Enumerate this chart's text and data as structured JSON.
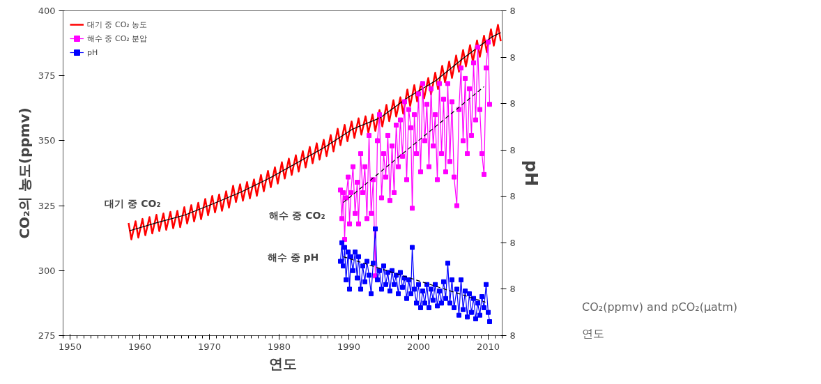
{
  "chart_data": {
    "type": "line",
    "xlabel": "연도",
    "ylabel": "CO₂의 농도(ppmv)",
    "y2label": "pH",
    "xlim": [
      1949,
      2012
    ],
    "xticks": [
      1950,
      1960,
      1970,
      1980,
      1990,
      2000,
      2010
    ],
    "ylim": [
      275,
      400
    ],
    "yticks": [
      275,
      300,
      325,
      350,
      375,
      400
    ],
    "y2lim": [
      8.05,
      8.4
    ],
    "y2ticks": [
      {
        "value": 8.05,
        "label": "8"
      },
      {
        "value": 8.1,
        "label": "8"
      },
      {
        "value": 8.15,
        "label": "8"
      },
      {
        "value": 8.2,
        "label": "8"
      },
      {
        "value": 8.25,
        "label": "8"
      },
      {
        "value": 8.3,
        "label": "8"
      },
      {
        "value": 8.35,
        "label": "8"
      },
      {
        "value": 8.4,
        "label": "8"
      }
    ],
    "grid": false,
    "legend": "top left",
    "series": [
      {
        "name": "대기 중 CO₂ 농도",
        "color": "#ff0000",
        "marker": "none",
        "line_style": "solid",
        "x": [
          1958.4,
          1958.8,
          1959.4,
          1959.8,
          1960.4,
          1960.8,
          1961.4,
          1961.8,
          1962.4,
          1962.8,
          1963.4,
          1963.8,
          1964.4,
          1964.8,
          1965.4,
          1965.8,
          1966.4,
          1966.8,
          1967.4,
          1967.8,
          1968.4,
          1968.8,
          1969.4,
          1969.8,
          1970.4,
          1970.8,
          1971.4,
          1971.8,
          1972.4,
          1972.8,
          1973.4,
          1973.8,
          1974.4,
          1974.8,
          1975.4,
          1975.8,
          1976.4,
          1976.8,
          1977.4,
          1977.8,
          1978.4,
          1978.8,
          1979.4,
          1979.8,
          1980.4,
          1980.8,
          1981.4,
          1981.8,
          1982.4,
          1982.8,
          1983.4,
          1983.8,
          1984.4,
          1984.8,
          1985.4,
          1985.8,
          1986.4,
          1986.8,
          1987.4,
          1987.8,
          1988.4,
          1988.8,
          1989.4,
          1989.8,
          1990.4,
          1990.8,
          1991.4,
          1991.8,
          1992.4,
          1992.8,
          1993.4,
          1993.8,
          1994.4,
          1994.8,
          1995.4,
          1995.8,
          1996.4,
          1996.8,
          1997.4,
          1997.8,
          1998.4,
          1998.8,
          1999.4,
          1999.8,
          2000.4,
          2000.8,
          2001.4,
          2001.8,
          2002.4,
          2002.8,
          2003.4,
          2003.8,
          2004.4,
          2004.8,
          2005.4,
          2005.8,
          2006.4,
          2006.8,
          2007.4,
          2007.8,
          2008.4,
          2008.8,
          2009.4,
          2009.8,
          2010.4,
          2010.8,
          2011.4,
          2011.8
        ],
        "values": [
          318.3,
          312.0,
          319.0,
          312.7,
          319.9,
          313.6,
          320.6,
          314.3,
          321.5,
          315.2,
          322.0,
          315.7,
          322.6,
          316.3,
          323.0,
          316.7,
          324.4,
          318.1,
          325.2,
          318.9,
          326.1,
          319.8,
          327.6,
          321.3,
          328.7,
          322.4,
          329.3,
          323.0,
          330.5,
          324.2,
          332.7,
          326.4,
          333.2,
          326.9,
          334.1,
          327.8,
          335.1,
          328.8,
          336.8,
          330.5,
          338.4,
          332.1,
          339.8,
          333.5,
          341.7,
          335.4,
          343.1,
          336.8,
          344.4,
          338.1,
          346.0,
          339.7,
          347.6,
          341.3,
          349.0,
          342.7,
          350.4,
          344.1,
          352.2,
          345.9,
          354.6,
          348.3,
          356.1,
          349.8,
          357.4,
          351.1,
          358.6,
          352.3,
          359.4,
          353.1,
          360.1,
          353.8,
          361.8,
          355.5,
          363.8,
          357.5,
          365.6,
          359.3,
          366.7,
          360.4,
          369.7,
          363.4,
          371.4,
          365.1,
          372.6,
          366.3,
          374.1,
          367.8,
          376.2,
          369.9,
          378.8,
          372.5,
          380.5,
          374.2,
          382.8,
          376.5,
          384.9,
          378.6,
          386.8,
          380.5,
          388.6,
          382.3,
          390.4,
          384.1,
          392.9,
          386.6,
          394.6,
          388.3
        ]
      },
      {
        "color": "#000000",
        "marker": "none",
        "line_style": "solid",
        "x": [
          1958.5,
          1962.5,
          1966.5,
          1970.5,
          1974.5,
          1978.5,
          1982.5,
          1986.5,
          1990.5,
          1994.5,
          1998.5,
          2002.5,
          2006.5,
          2010.5,
          2011.8
        ],
        "values": [
          315.3,
          318.5,
          321.4,
          325.7,
          330.2,
          335.4,
          341.4,
          347.4,
          354.4,
          358.8,
          366.7,
          373.2,
          381.9,
          389.9,
          391.6
        ]
      },
      {
        "name": "해수 중 CO₂ 분압",
        "color": "#ff00ff",
        "marker": "square",
        "line_style": "solid",
        "x": [
          1988.8,
          1989.0,
          1989.2,
          1989.4,
          1989.6,
          1989.9,
          1990.1,
          1990.3,
          1990.6,
          1990.9,
          1991.2,
          1991.4,
          1991.7,
          1992.0,
          1992.3,
          1992.6,
          1992.9,
          1993.2,
          1993.5,
          1993.8,
          1994.1,
          1994.4,
          1994.7,
          1995.0,
          1995.3,
          1995.6,
          1995.9,
          1996.2,
          1996.5,
          1996.8,
          1997.1,
          1997.4,
          1997.7,
          1998.0,
          1998.3,
          1998.6,
          1998.9,
          1999.1,
          1999.4,
          1999.7,
          2000.0,
          2000.3,
          2000.6,
          2000.9,
          2001.2,
          2001.5,
          2001.8,
          2002.1,
          2002.4,
          2002.7,
          2003.0,
          2003.3,
          2003.6,
          2003.9,
          2004.2,
          2004.5,
          2004.8,
          2005.1,
          2005.5,
          2005.8,
          2006.1,
          2006.4,
          2006.7,
          2007.0,
          2007.3,
          2007.6,
          2007.9,
          2008.2,
          2008.5,
          2008.8,
          2009.1,
          2009.4,
          2009.7,
          2010.0,
          2010.2
        ],
        "values": [
          331,
          320,
          330,
          312,
          328,
          336,
          318,
          330,
          340,
          322,
          334,
          318,
          345,
          330,
          340,
          320,
          352,
          322,
          335,
          298,
          350,
          360,
          328,
          345,
          336,
          352,
          327,
          348,
          330,
          356,
          340,
          358,
          344,
          365,
          335,
          362,
          355,
          324,
          360,
          345,
          368,
          338,
          372,
          350,
          364,
          340,
          370,
          348,
          360,
          335,
          372,
          345,
          366,
          338,
          372,
          342,
          365,
          336,
          325,
          362,
          378,
          350,
          374,
          345,
          370,
          352,
          380,
          358,
          386,
          362,
          345,
          337,
          378,
          388,
          364
        ]
      },
      {
        "color": "#000000",
        "marker": "none",
        "line_style": "dashed",
        "x": [
          1989.2,
          2009.4
        ],
        "values": [
          326.2,
          370.8
        ]
      },
      {
        "name": "pH",
        "color": "#0000ff",
        "marker": "square",
        "line_style": "solid",
        "axis": "y2",
        "x": [
          1988.8,
          1989.0,
          1989.2,
          1989.4,
          1989.6,
          1989.9,
          1990.1,
          1990.3,
          1990.6,
          1990.9,
          1991.2,
          1991.4,
          1991.7,
          1992.0,
          1992.3,
          1992.6,
          1992.9,
          1993.2,
          1993.5,
          1993.8,
          1994.1,
          1994.4,
          1994.7,
          1995.0,
          1995.3,
          1995.6,
          1995.9,
          1996.2,
          1996.5,
          1996.8,
          1997.1,
          1997.4,
          1997.7,
          1998.0,
          1998.3,
          1998.6,
          1998.9,
          1999.1,
          1999.4,
          1999.7,
          2000.0,
          2000.3,
          2000.6,
          2000.9,
          2001.2,
          2001.5,
          2001.8,
          2002.1,
          2002.4,
          2002.7,
          2003.0,
          2003.3,
          2003.6,
          2003.9,
          2004.2,
          2004.5,
          2004.8,
          2005.1,
          2005.5,
          2005.8,
          2006.1,
          2006.4,
          2006.7,
          2007.0,
          2007.3,
          2007.6,
          2007.9,
          2008.2,
          2008.5,
          2008.8,
          2009.1,
          2009.4,
          2009.7,
          2010.0,
          2010.2
        ],
        "values": [
          8.13,
          8.15,
          8.125,
          8.145,
          8.11,
          8.14,
          8.1,
          8.135,
          8.12,
          8.14,
          8.112,
          8.135,
          8.1,
          8.125,
          8.108,
          8.13,
          8.115,
          8.095,
          8.128,
          8.165,
          8.11,
          8.12,
          8.1,
          8.125,
          8.105,
          8.118,
          8.098,
          8.12,
          8.105,
          8.115,
          8.095,
          8.118,
          8.102,
          8.112,
          8.09,
          8.11,
          8.095,
          8.145,
          8.1,
          8.085,
          8.105,
          8.08,
          8.098,
          8.085,
          8.105,
          8.08,
          8.1,
          8.088,
          8.105,
          8.082,
          8.098,
          8.085,
          8.108,
          8.09,
          8.128,
          8.085,
          8.11,
          8.08,
          8.1,
          8.072,
          8.11,
          8.078,
          8.098,
          8.07,
          8.095,
          8.075,
          8.09,
          8.068,
          8.085,
          8.072,
          8.092,
          8.08,
          8.105,
          8.075,
          8.065
        ]
      },
      {
        "color": "#000000",
        "marker": "none",
        "line_style": "dashed",
        "axis": "y2",
        "x": [
          1989.2,
          2009.6
        ],
        "values": [
          8.135,
          8.086
        ]
      }
    ],
    "annotations": [
      "대기 중 CO₂",
      "해수 중 CO₂",
      "해수 중 pH",
      "CO₂(ppmv) and pCO₂(μatm)",
      "연도"
    ]
  }
}
